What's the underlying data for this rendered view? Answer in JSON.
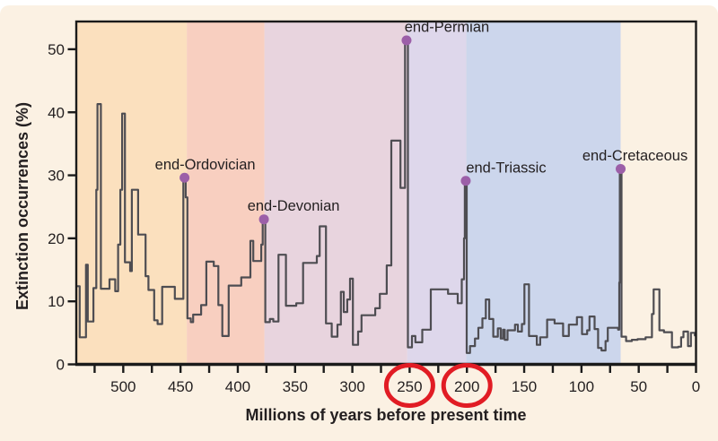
{
  "figure": {
    "background_color": "#fbf1e3",
    "outer_background": "#ffffff",
    "frame_color": "#1a1a1a",
    "text_color": "#231f20"
  },
  "chart_data": {
    "type": "line",
    "title": "",
    "xlabel": "Millions of years before present time",
    "ylabel": "Extinction occurrences (%)",
    "line_color": "#4e4d52",
    "marker_color": "#9c5fa8",
    "highlight_color": "#e11c24",
    "x_axis": {
      "min": 0,
      "max": 541,
      "reversed": true,
      "minor_tick_step": 25,
      "tick_values": [
        500,
        450,
        400,
        350,
        300,
        250,
        200,
        150,
        100,
        50,
        0
      ],
      "tick_labels": [
        "500",
        "450",
        "400",
        "350",
        "300",
        "250",
        "200",
        "150",
        "100",
        "50",
        "0"
      ]
    },
    "y_axis": {
      "min": 0,
      "max": 54.4,
      "tick_values": [
        0,
        10,
        20,
        30,
        40,
        50
      ],
      "tick_labels": [
        "0",
        "10",
        "20",
        "30",
        "40",
        "50"
      ]
    },
    "grid": false,
    "bands": [
      {
        "from": 541,
        "to": 444.5,
        "color": "#fbe0be"
      },
      {
        "from": 444.5,
        "to": 376.8,
        "color": "#f8cfc0"
      },
      {
        "from": 376.8,
        "to": 252.2,
        "color": "#e8d4de"
      },
      {
        "from": 252.2,
        "to": 200.5,
        "color": "#ded7eb"
      },
      {
        "from": 200.5,
        "to": 65.8,
        "color": "#ccd6ec"
      }
    ],
    "series": [
      {
        "name": "extinction occurrences",
        "step": true,
        "points_mya_pct": [
          [
            541,
            12.4
          ],
          [
            538,
            4.3
          ],
          [
            532.5,
            15.8
          ],
          [
            531,
            6.8
          ],
          [
            526,
            12.1
          ],
          [
            523.5,
            27.7
          ],
          [
            522.5,
            41.3
          ],
          [
            519.5,
            12.0
          ],
          [
            512,
            13.5
          ],
          [
            507,
            11.6
          ],
          [
            504.5,
            19.0
          ],
          [
            502.5,
            27.7
          ],
          [
            501,
            39.8
          ],
          [
            498.5,
            16.2
          ],
          [
            494,
            14.8
          ],
          [
            492.5,
            27.7
          ],
          [
            487,
            20.6
          ],
          [
            480.5,
            14.0
          ],
          [
            478,
            11.8
          ],
          [
            473,
            7.0
          ],
          [
            470,
            6.4
          ],
          [
            466,
            12.3
          ],
          [
            455,
            10.4
          ],
          [
            447.5,
            29.4
          ],
          [
            445.5,
            26.5
          ],
          [
            444,
            7.3
          ],
          [
            441,
            6.7
          ],
          [
            439,
            7.9
          ],
          [
            432,
            9.4
          ],
          [
            427.5,
            16.3
          ],
          [
            421,
            15.6
          ],
          [
            417,
            9.4
          ],
          [
            413.5,
            4.5
          ],
          [
            408,
            12.5
          ],
          [
            397,
            13.8
          ],
          [
            389,
            19.6
          ],
          [
            386.5,
            16.4
          ],
          [
            379.5,
            19.0
          ],
          [
            378.3,
            22.8
          ],
          [
            376,
            6.7
          ],
          [
            372,
            7.2
          ],
          [
            369,
            6.8
          ],
          [
            364.5,
            17.4
          ],
          [
            358,
            9.3
          ],
          [
            349,
            9.7
          ],
          [
            343,
            16.1
          ],
          [
            331,
            17.2
          ],
          [
            328.5,
            21.9
          ],
          [
            323,
            6.5
          ],
          [
            318,
            4.4
          ],
          [
            313,
            6.3
          ],
          [
            310,
            11.5
          ],
          [
            307.5,
            8.3
          ],
          [
            304.5,
            10.3
          ],
          [
            302,
            13.6
          ],
          [
            299.5,
            3.1
          ],
          [
            295,
            5.2
          ],
          [
            292,
            7.8
          ],
          [
            280,
            8.9
          ],
          [
            276,
            11.2
          ],
          [
            270,
            15.7
          ],
          [
            266,
            35.5
          ],
          [
            258,
            28.0
          ],
          [
            254,
            51.2
          ],
          [
            251.5,
            2.7
          ],
          [
            248,
            4.5
          ],
          [
            245,
            3.5
          ],
          [
            239,
            5.5
          ],
          [
            231.5,
            11.9
          ],
          [
            216.5,
            11.2
          ],
          [
            208,
            9.7
          ],
          [
            204.5,
            13.5
          ],
          [
            202.5,
            20.0
          ],
          [
            201.8,
            28.9
          ],
          [
            200.2,
            1.8
          ],
          [
            197.3,
            2.9
          ],
          [
            193,
            4.1
          ],
          [
            190,
            5.8
          ],
          [
            186.5,
            7.3
          ],
          [
            183.5,
            10.3
          ],
          [
            180.5,
            7.2
          ],
          [
            177,
            4.4
          ],
          [
            173,
            5.7
          ],
          [
            170.5,
            4.1
          ],
          [
            168.5,
            5.5
          ],
          [
            167,
            3.9
          ],
          [
            164.5,
            5.4
          ],
          [
            158,
            6.3
          ],
          [
            155.5,
            5.2
          ],
          [
            152,
            6.4
          ],
          [
            149.8,
            12.7
          ],
          [
            145.8,
            4.5
          ],
          [
            139,
            3.1
          ],
          [
            136,
            4.3
          ],
          [
            130,
            7.1
          ],
          [
            123.5,
            6.5
          ],
          [
            116,
            4.5
          ],
          [
            111,
            6.3
          ],
          [
            104,
            7.5
          ],
          [
            99.5,
            4.8
          ],
          [
            95,
            5.4
          ],
          [
            93,
            7.6
          ],
          [
            88.5,
            5.6
          ],
          [
            85.5,
            2.6
          ],
          [
            82.5,
            2.2
          ],
          [
            79,
            3.7
          ],
          [
            77,
            5.8
          ],
          [
            68,
            5.5
          ],
          [
            67,
            13.0
          ],
          [
            66.5,
            30.8
          ],
          [
            65,
            4.4
          ],
          [
            61,
            3.7
          ],
          [
            56,
            3.9
          ],
          [
            51,
            4.0
          ],
          [
            44,
            4.3
          ],
          [
            38.5,
            8.0
          ],
          [
            37,
            11.9
          ],
          [
            32,
            5.4
          ],
          [
            28,
            5.1
          ],
          [
            21,
            2.7
          ],
          [
            15.5,
            2.8
          ],
          [
            13,
            4.3
          ],
          [
            11,
            5.2
          ],
          [
            7,
            2.9
          ],
          [
            4.5,
            5.0
          ],
          [
            1,
            4.6
          ],
          [
            0,
            4.6
          ]
        ]
      }
    ],
    "events": [
      {
        "label": "end-Ordovician",
        "mya": 446.5,
        "pct": 29.4,
        "label_dx": 23
      },
      {
        "label": "end-Devonian",
        "mya": 377.2,
        "pct": 22.8,
        "label_dx": 33
      },
      {
        "label": "end-Permian",
        "mya": 252.7,
        "pct": 51.2,
        "label_dx": 45
      },
      {
        "label": "end-Triassic",
        "mya": 201.0,
        "pct": 28.9,
        "label_dx": 45
      },
      {
        "label": "end-Cretaceous",
        "mya": 65.8,
        "pct": 30.8,
        "label_dx": 16
      }
    ],
    "highlighted_x_ticks": {
      "tick_values": [
        250,
        200
      ],
      "shape": "ellipse"
    }
  }
}
